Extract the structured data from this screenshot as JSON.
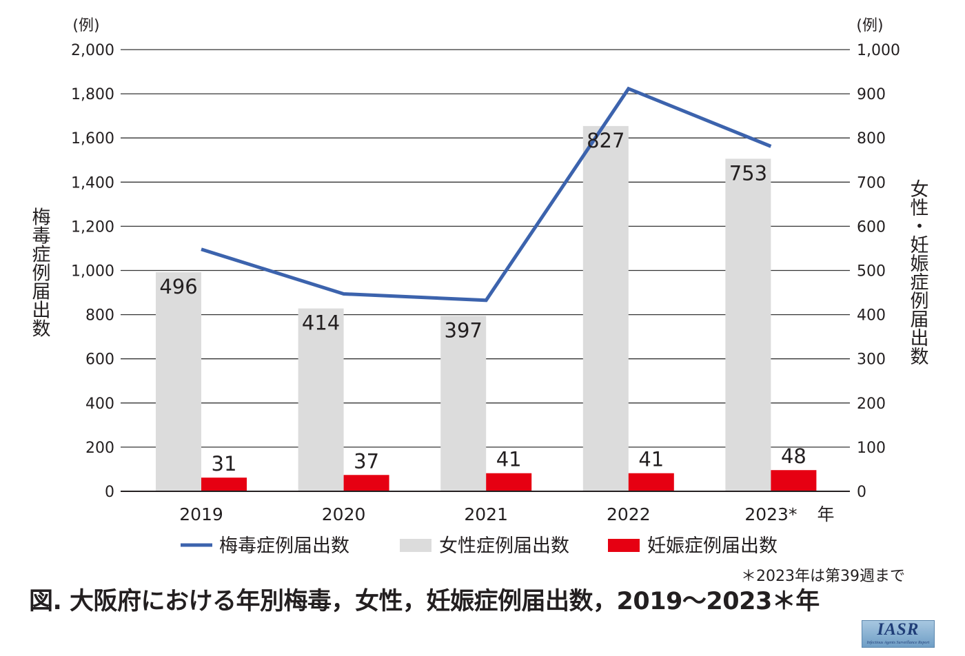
{
  "chart_data": {
    "type": "bar",
    "categories": [
      "2019",
      "2020",
      "2021",
      "2022",
      "2023*"
    ],
    "x_unit_label": "年",
    "left_axis": {
      "unit": "(例)",
      "label": "梅毒症例届出数",
      "range": [
        0,
        2000
      ],
      "ticks": [
        0,
        200,
        400,
        600,
        800,
        1000,
        1200,
        1400,
        1600,
        1800,
        2000
      ],
      "tick_labels": [
        "0",
        "200",
        "400",
        "600",
        "800",
        "1,000",
        "1,200",
        "1,400",
        "1,600",
        "1,800",
        "2,000"
      ]
    },
    "right_axis": {
      "unit": "(例)",
      "label": "女性・妊娠症例届出数",
      "range": [
        0,
        1000
      ],
      "ticks": [
        0,
        100,
        200,
        300,
        400,
        500,
        600,
        700,
        800,
        900,
        1000
      ],
      "tick_labels": [
        "0",
        "100",
        "200",
        "300",
        "400",
        "500",
        "600",
        "700",
        "800",
        "900",
        "1,000"
      ]
    },
    "series": [
      {
        "name": "梅毒症例届出数",
        "kind": "line",
        "axis": "left",
        "color": "#3c63ad",
        "values": [
          1096,
          894,
          865,
          1823,
          1562
        ]
      },
      {
        "name": "女性症例届出数",
        "kind": "bar",
        "axis": "right",
        "color": "#dcdcdc",
        "values": [
          496,
          414,
          397,
          827,
          753
        ],
        "labels": [
          "496",
          "414",
          "397",
          "827",
          "753"
        ]
      },
      {
        "name": "妊娠症例届出数",
        "kind": "bar",
        "axis": "right",
        "color": "#e60012",
        "values": [
          31,
          37,
          41,
          41,
          48
        ],
        "labels": [
          "31",
          "37",
          "41",
          "41",
          "48"
        ]
      }
    ],
    "grid": true,
    "legend_position": "bottom-center"
  },
  "footnote": "＊2023年は第39週まで",
  "caption": "図. 大阪府における年別梅毒，女性，妊娠症例届出数，2019〜2023＊年",
  "logo": {
    "main": "IASR",
    "sub": "Infectious Agents Surveillance Report"
  }
}
